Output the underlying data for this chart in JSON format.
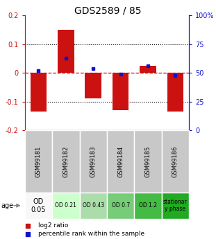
{
  "title": "GDS2589 / 85",
  "samples": [
    "GSM99181",
    "GSM99182",
    "GSM99183",
    "GSM99184",
    "GSM99185",
    "GSM99186"
  ],
  "log2_ratios": [
    -0.135,
    0.15,
    -0.09,
    -0.13,
    0.025,
    -0.135
  ],
  "percentile_ranks": [
    52,
    63,
    54,
    49,
    56,
    48
  ],
  "age_labels": [
    "OD\n0.05",
    "OD 0.21",
    "OD 0.43",
    "OD 0.7",
    "OD 1.2",
    "stationar\ny phase"
  ],
  "age_colors": [
    "#f8f8f8",
    "#ccffcc",
    "#aaddaa",
    "#77cc77",
    "#44bb44",
    "#22aa22"
  ],
  "ylim_left": [
    -0.2,
    0.2
  ],
  "ylim_right": [
    0,
    100
  ],
  "bar_color": "#cc1111",
  "dot_color": "#1111cc",
  "legend_bar_label": "log2 ratio",
  "legend_dot_label": "percentile rank within the sample",
  "left_axis_color": "#cc1111",
  "right_axis_color": "#1111cc",
  "dotted_line_values": [
    0.1,
    -0.1
  ],
  "zero_line_color": "#cc0000",
  "header_bg": "#c8c8c8",
  "title_fontsize": 10,
  "tick_fontsize": 7,
  "sample_fontsize": 6,
  "age_fontsize": 5.5,
  "legend_fontsize": 6.5
}
